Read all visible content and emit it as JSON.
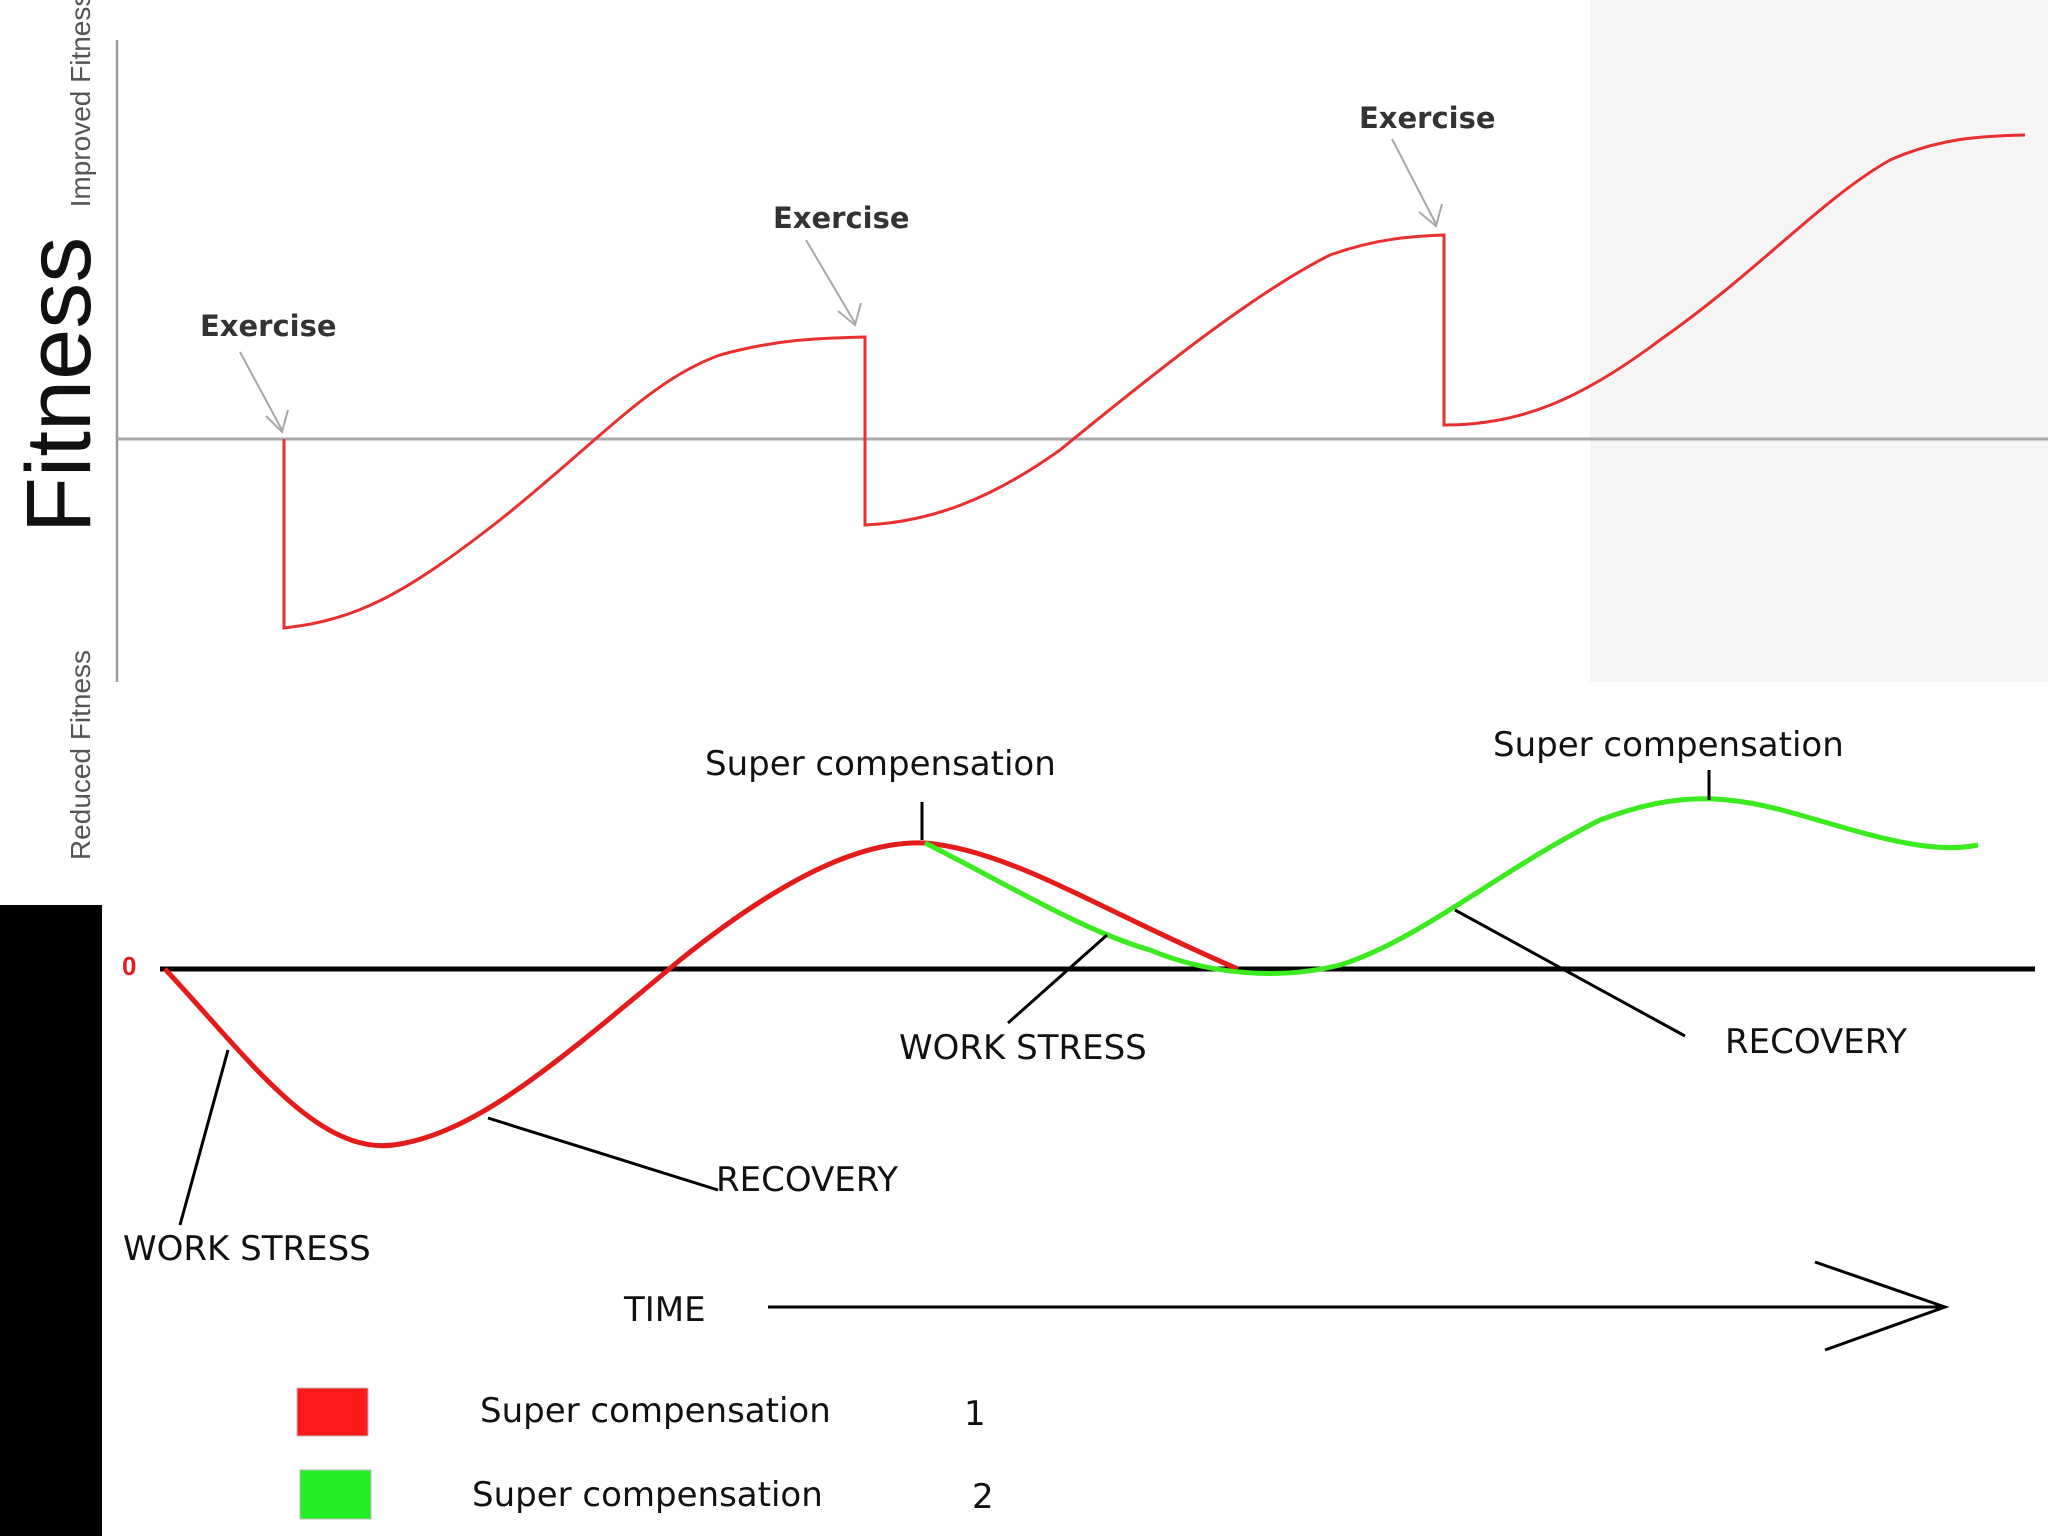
{
  "top_chart": {
    "ylabel": "Fitness",
    "y_top_label": "Improved Fitness",
    "y_bottom_label": "Reduced Fitness",
    "annotations": [
      "Exercise",
      "Exercise",
      "Exercise"
    ],
    "colors": {
      "curve": "#e8302f",
      "axis": "#9a9a9a",
      "baseline": "#a9a9a9"
    }
  },
  "bottom_chart": {
    "annotations": {
      "super_comp_left": "Super compensation",
      "super_comp_right": "Super compensation",
      "work_stress_left": "WORK STRESS",
      "recovery_left": "RECOVERY",
      "work_stress_mid": "WORK STRESS",
      "recovery_right": "RECOVERY",
      "zero_marker": "0"
    },
    "time_label": "TIME",
    "legend": [
      {
        "label": "Super compensation",
        "number": "1",
        "color": "#ff1a1a"
      },
      {
        "label": "Super compensation",
        "number": "2",
        "color": "#22ee22"
      }
    ],
    "colors": {
      "red": "#e41b1b",
      "green": "#3bea1f",
      "axis": "#000000"
    }
  }
}
